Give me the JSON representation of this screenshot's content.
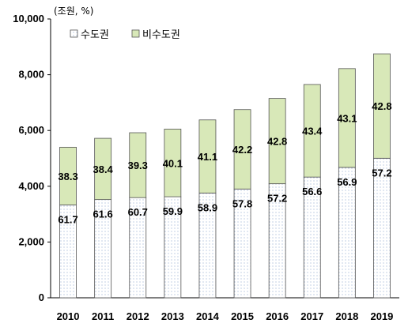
{
  "chart_data": {
    "type": "bar",
    "stacked": true,
    "unit_label": "(조원, %)",
    "categories": [
      "2010",
      "2011",
      "2012",
      "2013",
      "2014",
      "2015",
      "2016",
      "2017",
      "2018",
      "2019"
    ],
    "totals": [
      5400,
      5720,
      5920,
      6050,
      6380,
      6750,
      7150,
      7650,
      8220,
      8750
    ],
    "series": [
      {
        "name": "수도권",
        "share_percent": [
          61.7,
          61.6,
          60.7,
          59.9,
          58.9,
          57.8,
          57.2,
          56.6,
          56.9,
          57.2
        ]
      },
      {
        "name": "비수도권",
        "share_percent": [
          38.3,
          38.4,
          39.3,
          40.1,
          41.1,
          42.2,
          42.8,
          43.4,
          43.1,
          42.8
        ]
      }
    ],
    "ylim": [
      0,
      10000
    ],
    "yticks": [
      "10,000",
      "8,000",
      "6,000",
      "4,000",
      "2,000",
      "0"
    ],
    "ytick_values": [
      10000,
      8000,
      6000,
      4000,
      2000,
      0
    ],
    "legend": {
      "position": "top-left"
    },
    "grid": false,
    "colors": {
      "capital_fill": "#ffffff",
      "capital_dots": "#6f8fc0",
      "noncapital_fill": "#d8e8b8",
      "border": "#555555"
    }
  }
}
